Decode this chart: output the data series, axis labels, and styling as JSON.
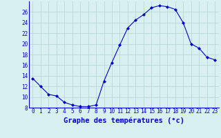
{
  "hours": [
    0,
    1,
    2,
    3,
    4,
    5,
    6,
    7,
    8,
    9,
    10,
    11,
    12,
    13,
    14,
    15,
    16,
    17,
    18,
    19,
    20,
    21,
    22,
    23
  ],
  "temps": [
    13.5,
    12.0,
    10.5,
    10.2,
    9.0,
    8.5,
    8.2,
    8.2,
    8.5,
    13.0,
    16.5,
    19.8,
    23.0,
    24.5,
    25.5,
    26.8,
    27.2,
    27.0,
    26.5,
    24.0,
    20.0,
    19.2,
    17.5,
    17.0
  ],
  "line_color": "#0000cc",
  "marker": "D",
  "marker_size": 2.0,
  "bg_color": "#d8f0f0",
  "grid_color": "#b8d8d8",
  "xlabel": "Graphe des températures (°c)",
  "xlabel_color": "#0000cc",
  "tick_color": "#0000cc",
  "axis_color": "#0000cc",
  "ylim": [
    8,
    28
  ],
  "yticks": [
    8,
    10,
    12,
    14,
    16,
    18,
    20,
    22,
    24,
    26
  ],
  "xlim": [
    -0.5,
    23.5
  ],
  "xticks": [
    0,
    1,
    2,
    3,
    4,
    5,
    6,
    7,
    8,
    9,
    10,
    11,
    12,
    13,
    14,
    15,
    16,
    17,
    18,
    19,
    20,
    21,
    22,
    23
  ],
  "tick_fontsize": 5.5,
  "ylabel_fontsize": 5.5,
  "xlabel_fontsize": 7.5
}
